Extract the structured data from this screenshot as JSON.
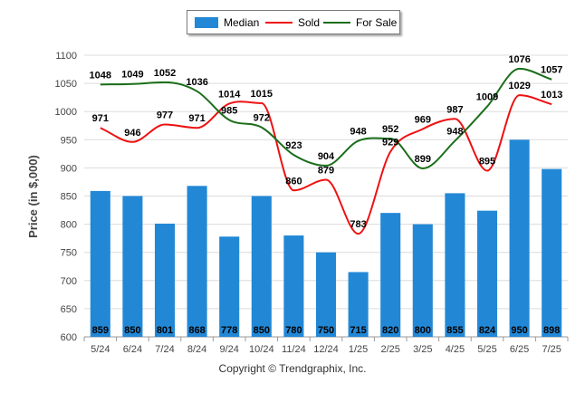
{
  "chart_data": {
    "type": "bar",
    "categories": [
      "5/24",
      "6/24",
      "7/24",
      "8/24",
      "9/24",
      "10/24",
      "11/24",
      "12/24",
      "1/25",
      "2/25",
      "3/25",
      "4/25",
      "5/25",
      "6/25",
      "7/25"
    ],
    "series": [
      {
        "name": "Median",
        "kind": "bar",
        "color": "#2288d6",
        "values": [
          859,
          850,
          801,
          868,
          778,
          850,
          780,
          750,
          715,
          820,
          800,
          855,
          824,
          950,
          898
        ]
      },
      {
        "name": "Sold",
        "kind": "line",
        "color": "#ee1111",
        "values": [
          971,
          946,
          977,
          971,
          1014,
          1015,
          860,
          879,
          783,
          929,
          969,
          987,
          895,
          1029,
          1013
        ]
      },
      {
        "name": "For Sale",
        "kind": "line",
        "color": "#1a6e1a",
        "values": [
          1048,
          1049,
          1052,
          1036,
          985,
          972,
          923,
          904,
          948,
          952,
          899,
          948,
          1009,
          1076,
          1057
        ]
      }
    ],
    "ylabel": "Price (in $,000)",
    "xlabel": "",
    "ylim": [
      600,
      1100
    ],
    "yticks": [
      600,
      650,
      700,
      750,
      800,
      850,
      900,
      950,
      1000,
      1050,
      1100
    ],
    "grid": true,
    "legend_position": "top-center"
  },
  "footer": "Copyright © Trendgraphix, Inc."
}
